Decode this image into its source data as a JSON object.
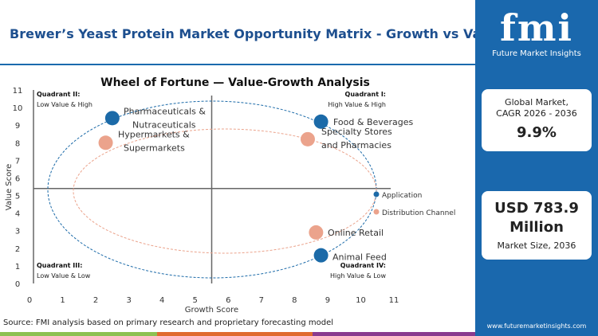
{
  "header": {
    "title": "Brewer’s Yeast Protein Market Opportunity Matrix - Growth vs Value"
  },
  "sidebar": {
    "logo": "fmi",
    "logo_sub": "Future Market Insights",
    "cagr_label": "Global Market, CAGR 2026 - 2036",
    "cagr_value": "9.9%",
    "size_value": "USD 783.9 Million",
    "size_label": "Market Size, 2036",
    "url": "www.futuremarketinsights.com"
  },
  "source": "Source: FMI analysis based on primary research and proprietary forecasting model",
  "colors": {
    "application": "#1b6aa8",
    "distribution": "#eba38c",
    "brand": "#1a68ad"
  },
  "chart_data": {
    "type": "scatter",
    "title": "Wheel of Fortune — Value-Growth Analysis",
    "xlabel": "Growth Score",
    "ylabel": "Value Score",
    "xlim": [
      0,
      11
    ],
    "ylim": [
      0,
      11
    ],
    "xticks": [
      0,
      1,
      2,
      3,
      4,
      5,
      6,
      7,
      8,
      9,
      10,
      11
    ],
    "yticks": [
      0,
      1,
      2,
      3,
      4,
      5,
      6,
      7,
      8,
      9,
      10,
      11
    ],
    "divider": {
      "x": 5.5,
      "y": 5.4
    },
    "quadrants": [
      {
        "title": "Quadrant II:",
        "desc": "Low Value & High"
      },
      {
        "title": "Quadrant I:",
        "desc": "High Value & High"
      },
      {
        "title": "Quadrant III:",
        "desc": "Low Value & Low"
      },
      {
        "title": "Quadrant IV:",
        "desc": "High Value & Low"
      }
    ],
    "legend": [
      "Application",
      "Distribution Channel"
    ],
    "series": [
      {
        "name": "Application",
        "points": [
          {
            "label": "Pharmaceuticals & Nutraceuticals",
            "x": 2.5,
            "y": 9.4
          },
          {
            "label": "Food & Beverages",
            "x": 8.8,
            "y": 9.2
          },
          {
            "label": "Animal Feed",
            "x": 8.8,
            "y": 1.6
          }
        ]
      },
      {
        "name": "Distribution Channel",
        "points": [
          {
            "label": "Hypermarkets & Supermarkets",
            "x": 2.3,
            "y": 8.0
          },
          {
            "label": "Specialty Stores and Pharmacies",
            "x": 8.4,
            "y": 8.2
          },
          {
            "label": "Online Retail",
            "x": 8.65,
            "y": 2.9
          }
        ]
      }
    ]
  }
}
